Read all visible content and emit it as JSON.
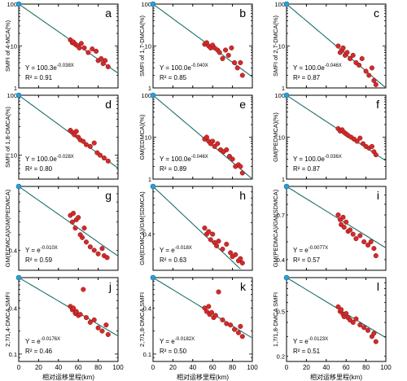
{
  "figure": {
    "shared_xlabel": "相对运移里程(km)",
    "x_ticks": [
      "0",
      "20",
      "40",
      "60",
      "80",
      "100"
    ]
  },
  "colors": {
    "point_fill": "#d22b2b",
    "point_stroke": "#8a1212",
    "fit_line": "#1f6f6b",
    "origin_marker": "#2a9fd6",
    "axis": "#000000"
  },
  "chart_data": [
    {
      "type": "scatter",
      "panel_label": "a",
      "ylabel": "SMFI of 4-MCA(%)",
      "yscale": "log",
      "yticks": [
        "1",
        "10",
        "100"
      ],
      "xlim": [
        0,
        100
      ],
      "ylim": [
        1,
        100
      ],
      "equation": {
        "prefix": "Y = 100.3e",
        "exponent": "-0.038X"
      },
      "r2": "R² = 0.91",
      "fit": {
        "a": 100.3,
        "k": -0.038
      },
      "x": [
        52,
        54,
        55,
        57,
        58,
        60,
        61,
        63,
        66,
        70,
        74,
        78,
        80,
        83,
        85,
        87,
        90
      ],
      "y": [
        14.0,
        12.0,
        12.5,
        11.0,
        10.5,
        10.0,
        9.0,
        11.5,
        9.0,
        7.0,
        8.5,
        7.5,
        4.5,
        5.0,
        3.8,
        4.5,
        3.2
      ]
    },
    {
      "type": "scatter",
      "panel_label": "b",
      "ylabel": "SMFI of 1,7-DMCA(%)",
      "yscale": "log",
      "yticks": [
        "1",
        "10",
        "100"
      ],
      "xlim": [
        0,
        100
      ],
      "ylim": [
        1,
        100
      ],
      "equation": {
        "prefix": "Y = 100.0e",
        "exponent": "-0.040X"
      },
      "r2": "R² = 0.85",
      "fit": {
        "a": 100.0,
        "k": -0.04
      },
      "x": [
        52,
        54,
        56,
        58,
        60,
        62,
        65,
        67,
        70,
        73,
        76,
        79,
        82,
        85,
        88,
        90
      ],
      "y": [
        11.0,
        12.0,
        10.0,
        9.0,
        10.5,
        9.0,
        8.0,
        7.0,
        5.0,
        8.0,
        6.0,
        9.0,
        4.0,
        3.0,
        4.0,
        2.0
      ]
    },
    {
      "type": "scatter",
      "panel_label": "c",
      "ylabel": "SMFI of 2,7-DMCA(%)",
      "yscale": "log",
      "yticks": [
        "1",
        "10",
        "100"
      ],
      "xlim": [
        0,
        100
      ],
      "ylim": [
        1,
        100
      ],
      "equation": {
        "prefix": "Y = 100.0e",
        "exponent": "-0.046X"
      },
      "r2": "R² = 0.87",
      "fit": {
        "a": 100.0,
        "k": -0.046
      },
      "x": [
        52,
        54,
        56,
        57,
        59,
        61,
        64,
        67,
        70,
        73,
        76,
        80,
        83,
        86,
        88,
        90
      ],
      "y": [
        10.0,
        7.0,
        8.0,
        9.0,
        6.0,
        7.0,
        5.0,
        6.0,
        4.0,
        3.5,
        5.0,
        2.5,
        2.0,
        3.0,
        1.5,
        1.2
      ]
    },
    {
      "type": "scatter",
      "panel_label": "d",
      "ylabel": "SMFI of 1,8-DMCA(%)",
      "yscale": "log",
      "yticks": [
        "10",
        "100"
      ],
      "xlim": [
        0,
        100
      ],
      "ylim": [
        4,
        100
      ],
      "equation": {
        "prefix": "Y = 100.0e",
        "exponent": "-0.028X"
      },
      "r2": "R² = 0.80",
      "fit": {
        "a": 100.0,
        "k": -0.028
      },
      "x": [
        52,
        54,
        56,
        58,
        60,
        62,
        65,
        68,
        72,
        76,
        79,
        82,
        86,
        90
      ],
      "y": [
        26.0,
        24.0,
        22.0,
        25.0,
        20.0,
        18.0,
        17.0,
        15.0,
        14.0,
        16.0,
        11.0,
        10.0,
        9.0,
        8.0
      ]
    },
    {
      "type": "scatter",
      "panel_label": "e",
      "ylabel": "GM(EDMCA)(%)",
      "yscale": "log",
      "yticks": [
        "1",
        "10",
        "100"
      ],
      "xlim": [
        0,
        100
      ],
      "ylim": [
        1,
        100
      ],
      "equation": {
        "prefix": "Y = 100.0e",
        "exponent": "-0.046X"
      },
      "r2": "R² = 0.89",
      "fit": {
        "a": 100.0,
        "k": -0.046
      },
      "x": [
        52,
        54,
        56,
        58,
        60,
        62,
        65,
        68,
        71,
        74,
        77,
        80,
        83,
        86,
        88,
        90
      ],
      "y": [
        9.0,
        10.0,
        8.0,
        7.0,
        8.0,
        6.0,
        7.0,
        5.0,
        4.5,
        5.0,
        3.5,
        3.0,
        2.0,
        2.2,
        2.0,
        1.4
      ]
    },
    {
      "type": "scatter",
      "panel_label": "f",
      "ylabel": "GM(PEDMCA)(%)",
      "yscale": "log",
      "yticks": [
        "1",
        "10",
        "100"
      ],
      "xlim": [
        0,
        100
      ],
      "ylim": [
        1,
        100
      ],
      "equation": {
        "prefix": "Y = 100.0e",
        "exponent": "-0.036X"
      },
      "r2": "R² = 0.87",
      "fit": {
        "a": 100.0,
        "k": -0.036
      },
      "x": [
        52,
        54,
        56,
        58,
        60,
        62,
        65,
        68,
        71,
        74,
        77,
        80,
        83,
        86,
        88,
        90
      ],
      "y": [
        16.0,
        14.0,
        15.0,
        13.0,
        12.0,
        11.0,
        10.0,
        9.0,
        8.0,
        9.5,
        7.0,
        6.0,
        5.5,
        6.0,
        4.5,
        3.8
      ]
    },
    {
      "type": "scatter",
      "panel_label": "g",
      "ylabel": "GM(EDMCA)/GM(PEDMCA)",
      "yscale": "log",
      "yticks": [
        "0.4"
      ],
      "xlim": [
        0,
        100
      ],
      "ylim": [
        0.3,
        1
      ],
      "equation": {
        "prefix": "Y = e",
        "exponent": "-0.010X"
      },
      "r2": "R² = 0.59",
      "fit": {
        "a": 1.0,
        "k": -0.01
      },
      "x": [
        52,
        54,
        55,
        57,
        58,
        60,
        62,
        64,
        66,
        68,
        72,
        76,
        80,
        84,
        86,
        89
      ],
      "y": [
        0.66,
        0.6,
        0.68,
        0.55,
        0.62,
        0.64,
        0.5,
        0.48,
        0.55,
        0.45,
        0.42,
        0.4,
        0.38,
        0.41,
        0.37,
        0.36
      ]
    },
    {
      "type": "scatter",
      "panel_label": "h",
      "ylabel": "GM(EDMCA)/GM(SDMCA)",
      "yscale": "log",
      "yticks": [
        "0.4"
      ],
      "xlim": [
        0,
        100
      ],
      "ylim": [
        0.2,
        1
      ],
      "equation": {
        "prefix": "Y = e",
        "exponent": "-0.018X"
      },
      "r2": "R² = 0.63",
      "fit": {
        "a": 1.0,
        "k": -0.018
      },
      "x": [
        52,
        54,
        56,
        58,
        60,
        62,
        64,
        66,
        70,
        74,
        78,
        80,
        83,
        86,
        88,
        90
      ],
      "y": [
        0.45,
        0.4,
        0.42,
        0.36,
        0.4,
        0.34,
        0.32,
        0.35,
        0.3,
        0.33,
        0.28,
        0.26,
        0.27,
        0.24,
        0.25,
        0.23
      ]
    },
    {
      "type": "scatter",
      "panel_label": "i",
      "ylabel": "GM(PEDMCA)/GM(SDMCA)",
      "yscale": "log",
      "yticks": [
        "0.7",
        "0.4"
      ],
      "xlim": [
        0,
        100
      ],
      "ylim": [
        0.35,
        1
      ],
      "equation": {
        "prefix": "Y = e",
        "exponent": "-0.0077X"
      },
      "r2": "R² = 0.57",
      "fit": {
        "a": 1.0,
        "k": -0.0077
      },
      "x": [
        52,
        54,
        55,
        57,
        58,
        60,
        62,
        64,
        67,
        70,
        74,
        78,
        82,
        85,
        88,
        90
      ],
      "y": [
        0.7,
        0.66,
        0.62,
        0.68,
        0.6,
        0.64,
        0.57,
        0.58,
        0.55,
        0.52,
        0.54,
        0.5,
        0.48,
        0.5,
        0.46,
        0.42
      ]
    },
    {
      "type": "scatter",
      "panel_label": "j",
      "ylabel": "2,7/1,4-DMCA SMFI",
      "yscale": "log",
      "yticks": [
        "0.4",
        "0.1"
      ],
      "xlim": [
        0,
        100
      ],
      "ylim": [
        0.08,
        1
      ],
      "equation": {
        "prefix": "Y = e",
        "exponent": "-0.0176X"
      },
      "r2": "R² = 0.46",
      "fit": {
        "a": 1.0,
        "k": -0.0176
      },
      "x": [
        52,
        54,
        55,
        57,
        58,
        60,
        62,
        65,
        68,
        72,
        76,
        80,
        84,
        88,
        90
      ],
      "y": [
        0.42,
        0.38,
        0.4,
        0.34,
        0.36,
        0.32,
        0.33,
        0.7,
        0.3,
        0.26,
        0.28,
        0.22,
        0.2,
        0.24,
        0.18
      ]
    },
    {
      "type": "scatter",
      "panel_label": "k",
      "ylabel": "2,7/1,8-DMCA SMFI",
      "yscale": "log",
      "yticks": [
        "0.4",
        "0.1"
      ],
      "xlim": [
        0,
        100
      ],
      "ylim": [
        0.08,
        1
      ],
      "equation": {
        "prefix": "Y = e",
        "exponent": "-0.0182X"
      },
      "r2": "R² = 0.50",
      "fit": {
        "a": 1.0,
        "k": -0.0182
      },
      "x": [
        52,
        54,
        56,
        57,
        59,
        61,
        63,
        66,
        70,
        74,
        78,
        82,
        86,
        88,
        90
      ],
      "y": [
        0.4,
        0.36,
        0.42,
        0.33,
        0.35,
        0.3,
        0.32,
        0.65,
        0.28,
        0.25,
        0.24,
        0.21,
        0.19,
        0.23,
        0.17
      ]
    },
    {
      "type": "scatter",
      "panel_label": "l",
      "ylabel": "1,7/1,8-DMCA SMFI",
      "yscale": "log",
      "yticks": [
        "0.5",
        "0.2"
      ],
      "xlim": [
        0,
        100
      ],
      "ylim": [
        0.18,
        1
      ],
      "equation": {
        "prefix": "Y = e",
        "exponent": "-0.0123X"
      },
      "r2": "R² = 0.51",
      "fit": {
        "a": 1.0,
        "k": -0.0123
      },
      "x": [
        52,
        54,
        55,
        57,
        58,
        60,
        62,
        64,
        67,
        70,
        74,
        78,
        82,
        86,
        88,
        90
      ],
      "y": [
        0.55,
        0.5,
        0.52,
        0.47,
        0.45,
        0.48,
        0.44,
        0.42,
        0.4,
        0.43,
        0.38,
        0.36,
        0.34,
        0.3,
        0.32,
        0.27
      ]
    }
  ]
}
